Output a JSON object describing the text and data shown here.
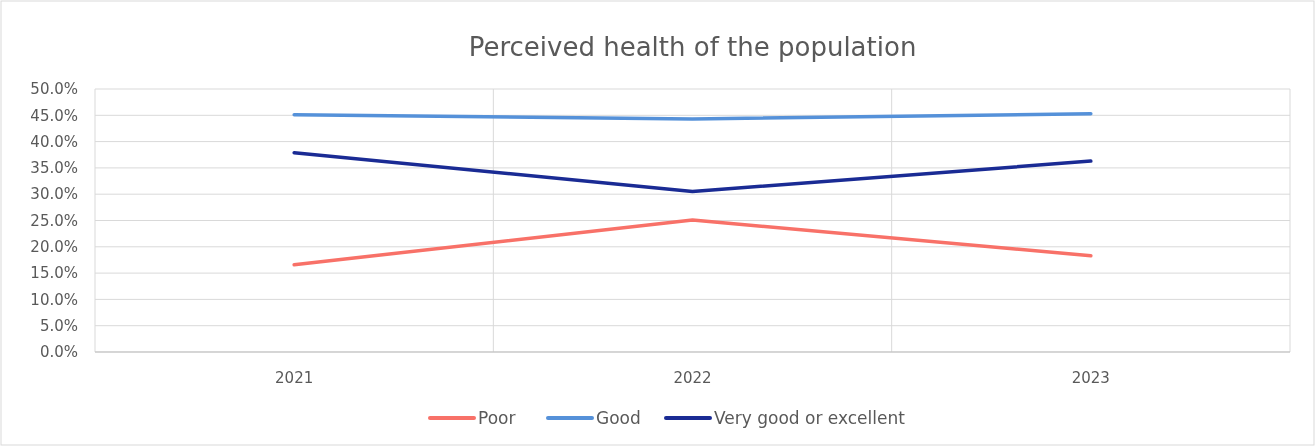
{
  "chart_data": {
    "type": "line",
    "title": "Perceived health of the population",
    "categories": [
      "2021",
      "2022",
      "2023"
    ],
    "series": [
      {
        "name": "Poor",
        "color": "#f87168",
        "values": [
          16.6,
          25.1,
          18.3
        ]
      },
      {
        "name": "Good",
        "color": "#5591d9",
        "values": [
          45.1,
          44.3,
          45.3
        ]
      },
      {
        "name": "Very good or excellent",
        "color": "#1a2b94",
        "values": [
          37.9,
          30.5,
          36.3
        ]
      }
    ],
    "ylim": [
      0,
      50
    ],
    "yticks": [
      {
        "value": 0,
        "label": "0.0%"
      },
      {
        "value": 5,
        "label": "5.0%"
      },
      {
        "value": 10,
        "label": "10.0%"
      },
      {
        "value": 15,
        "label": "15.0%"
      },
      {
        "value": 20,
        "label": "20.0%"
      },
      {
        "value": 25,
        "label": "25.0%"
      },
      {
        "value": 30,
        "label": "30.0%"
      },
      {
        "value": 35,
        "label": "35.0%"
      },
      {
        "value": 40,
        "label": "40.0%"
      },
      {
        "value": 45,
        "label": "45.0%"
      },
      {
        "value": 50,
        "label": "50.0%"
      }
    ],
    "grid": true,
    "legend": "bottom",
    "marker": "none"
  }
}
